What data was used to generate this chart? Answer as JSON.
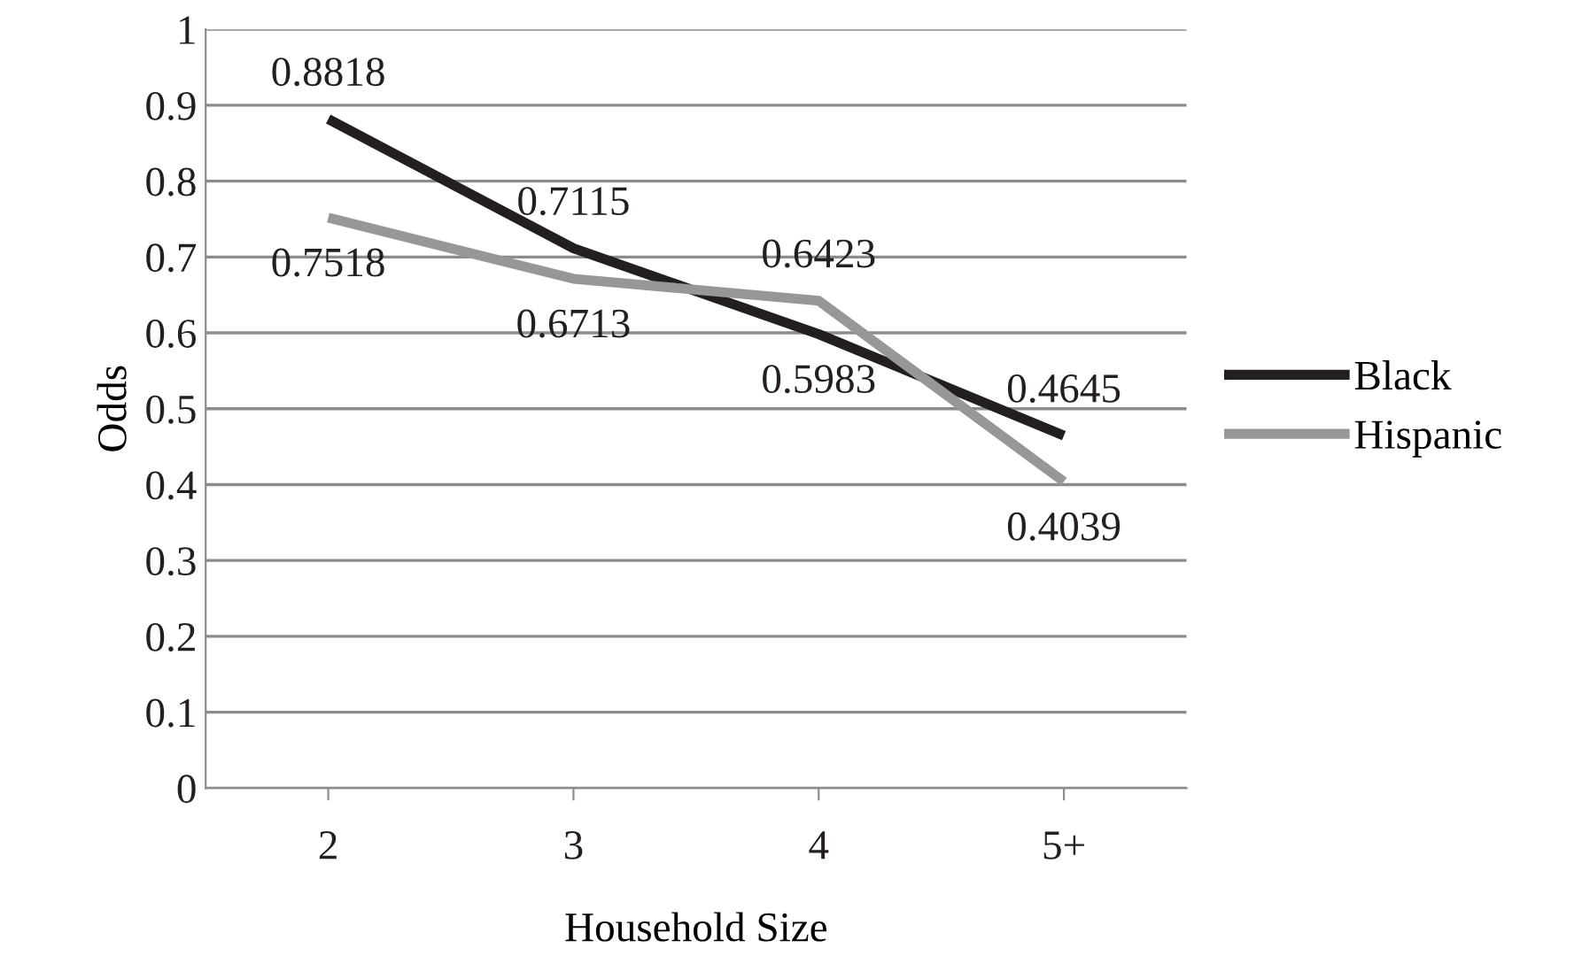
{
  "chart_data": {
    "type": "line",
    "xlabel": "Household Size",
    "ylabel": "Odds",
    "categories": [
      "2",
      "3",
      "4",
      "5+"
    ],
    "series": [
      {
        "name": "Black",
        "color": "#231f20",
        "values": [
          0.8818,
          0.7115,
          0.5983,
          0.4645
        ]
      },
      {
        "name": "Hispanic",
        "color": "#979797",
        "values": [
          0.7518,
          0.6713,
          0.6423,
          0.4039
        ]
      }
    ],
    "ylim": [
      0,
      1
    ],
    "yticks": [
      0,
      0.1,
      0.2,
      0.3,
      0.4,
      0.5,
      0.6,
      0.7,
      0.8,
      0.9,
      1
    ],
    "grid": "y",
    "legend": "right",
    "data_labels": true,
    "marker": "none",
    "line_style": "solid"
  }
}
